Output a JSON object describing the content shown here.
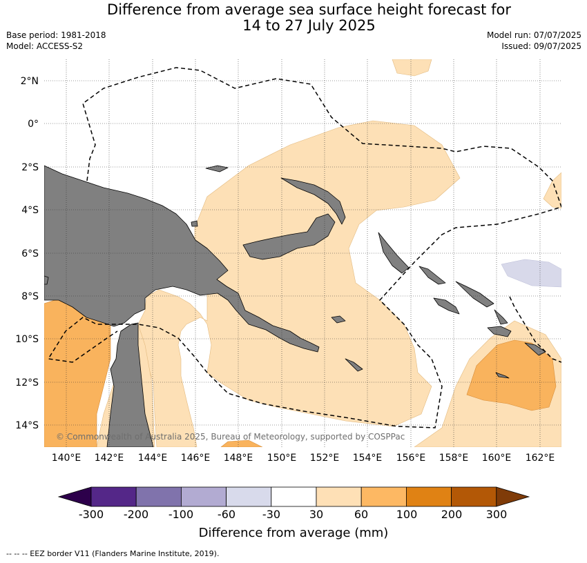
{
  "header": {
    "title_line1": "Difference from average sea surface height forecast for",
    "title_line2": "14 to 27 July 2025",
    "base_period": "Base period: 1981-2018",
    "model": "Model: ACCESS-S2",
    "model_run": "Model run: 07/07/2025",
    "issued": "Issued: 09/07/2025"
  },
  "map": {
    "lat_labels": [
      "2°N",
      "0°",
      "2°S",
      "4°S",
      "6°S",
      "8°S",
      "10°S",
      "12°S",
      "14°S"
    ],
    "lon_labels": [
      "140°E",
      "142°E",
      "144°E",
      "146°E",
      "148°E",
      "150°E",
      "152°E",
      "154°E",
      "156°E",
      "158°E",
      "160°E",
      "162°E"
    ],
    "copyright": "© Commonwealth of Australia 2025, Bureau of Meteorology, supported by COSPPac",
    "colors": {
      "land": "#808080",
      "anom_-60_-30": "#d8d9ea",
      "anom_30_60": "#fde0b6",
      "anom_60_100": "#f9b35d"
    }
  },
  "colorbar": {
    "label": "Difference from average (mm)",
    "ticks": [
      "-300",
      "-200",
      "-100",
      "-60",
      "-30",
      "30",
      "60",
      "100",
      "200",
      "300"
    ],
    "colors": [
      "#2d004b",
      "#542788",
      "#8073ac",
      "#b2abd2",
      "#d8daeb",
      "#ffffff",
      "#fee0b6",
      "#fdb863",
      "#e08214",
      "#b35806",
      "#7f3b08"
    ]
  },
  "footer": {
    "legend": "--  --  -- EEZ border V11 (Flanders Marine Institute, 2019)."
  }
}
